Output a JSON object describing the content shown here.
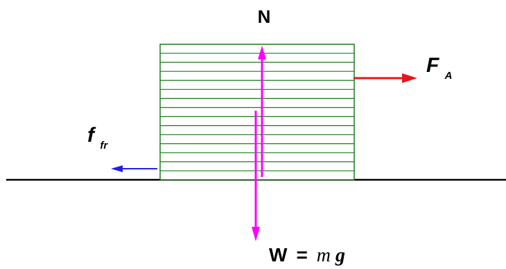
{
  "labels": {
    "normal": "N",
    "applied_main": "F",
    "applied_sub": "A",
    "friction_main": "f",
    "friction_sub": "fr",
    "weight_main": "W",
    "weight_eq": "=",
    "weight_m": "m",
    "weight_g": "g"
  },
  "colors": {
    "block_stroke": "#1a7a1a",
    "ground": "#000000",
    "normal_force": "#ff00ff",
    "weight_force": "#ff00ff",
    "applied_force": "#e61717",
    "friction_force": "#1f1fe6"
  },
  "block": {
    "stripe_count": 14
  }
}
